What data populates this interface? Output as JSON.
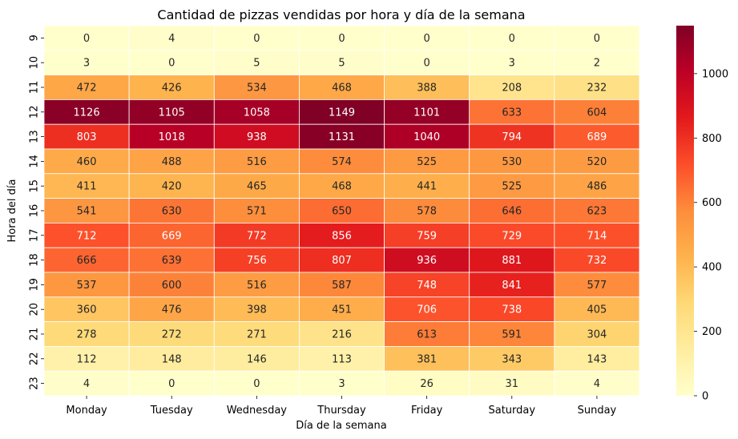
{
  "chart_data": {
    "type": "heatmap",
    "title": "Cantidad de pizzas vendidas por hora y día de la semana",
    "xlabel": "Día de la semana",
    "ylabel": "Hora del día",
    "x_categories": [
      "Monday",
      "Tuesday",
      "Wednesday",
      "Thursday",
      "Friday",
      "Saturday",
      "Sunday"
    ],
    "y_categories": [
      "9",
      "10",
      "11",
      "12",
      "13",
      "14",
      "15",
      "16",
      "17",
      "18",
      "19",
      "20",
      "21",
      "22",
      "23"
    ],
    "values": [
      [
        0,
        4,
        0,
        0,
        0,
        0,
        0
      ],
      [
        3,
        0,
        5,
        5,
        0,
        3,
        2
      ],
      [
        472,
        426,
        534,
        468,
        388,
        208,
        232
      ],
      [
        1126,
        1105,
        1058,
        1149,
        1101,
        633,
        604
      ],
      [
        803,
        1018,
        938,
        1131,
        1040,
        794,
        689
      ],
      [
        460,
        488,
        516,
        574,
        525,
        530,
        520
      ],
      [
        411,
        420,
        465,
        468,
        441,
        525,
        486
      ],
      [
        541,
        630,
        571,
        650,
        578,
        646,
        623
      ],
      [
        712,
        669,
        772,
        856,
        759,
        729,
        714
      ],
      [
        666,
        639,
        756,
        807,
        936,
        881,
        732
      ],
      [
        537,
        600,
        516,
        587,
        748,
        841,
        577
      ],
      [
        360,
        476,
        398,
        451,
        706,
        738,
        405
      ],
      [
        278,
        272,
        271,
        216,
        613,
        591,
        304
      ],
      [
        112,
        148,
        146,
        113,
        381,
        343,
        143
      ],
      [
        4,
        0,
        0,
        3,
        26,
        31,
        4
      ]
    ],
    "colormap": "YlOrRd",
    "colorbar": {
      "min": 0,
      "max": 1149,
      "ticks": [
        0,
        200,
        400,
        600,
        800,
        1000
      ]
    },
    "grid": false,
    "legend": "colorbar-right"
  }
}
